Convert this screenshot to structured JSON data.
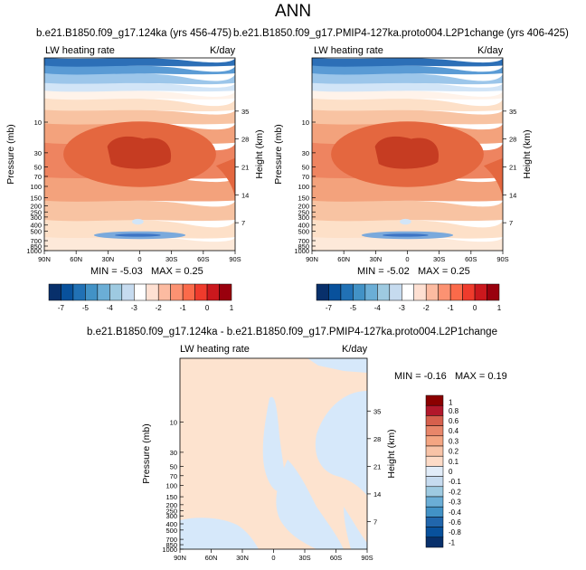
{
  "main_title": "ANN",
  "chart_data": [
    {
      "type": "heatmap",
      "title": "b.e21.B1850.f09_g17.124ka (yrs 456-475)",
      "left_label": "LW heating rate",
      "right_label": "K/day",
      "xlabel": "",
      "ylabel": "Pressure (mb)",
      "ylabel_right": "Height (km)",
      "x_ticks": [
        "90N",
        "60N",
        "30N",
        "0",
        "30S",
        "60S",
        "90S"
      ],
      "y_ticks": [
        "10",
        "30",
        "50",
        "70",
        "100",
        "150",
        "200",
        "250",
        "300",
        "400",
        "500",
        "700",
        "850",
        "1000"
      ],
      "y_ticks_right": [
        "35",
        "28",
        "21",
        "14",
        "7"
      ],
      "ylim": [
        1,
        1000
      ],
      "min_label": "MIN =",
      "min_value": "-5.03",
      "max_label": "MAX =",
      "max_value": "0.25",
      "colorbar_labels": [
        "-7",
        "-5",
        "-4",
        "-3",
        "-2",
        "-1",
        "0",
        "1"
      ]
    },
    {
      "type": "heatmap",
      "title": "b.e21.B1850.f09_g17.PMIP4-127ka.proto004.L2P1change (yrs 406-425)",
      "left_label": "LW heating rate",
      "right_label": "K/day",
      "xlabel": "",
      "ylabel": "Pressure (mb)",
      "ylabel_right": "Height (km)",
      "x_ticks": [
        "90N",
        "60N",
        "30N",
        "0",
        "30S",
        "60S",
        "90S"
      ],
      "y_ticks": [
        "10",
        "30",
        "50",
        "70",
        "100",
        "150",
        "200",
        "250",
        "300",
        "400",
        "500",
        "700",
        "850",
        "1000"
      ],
      "y_ticks_right": [
        "35",
        "28",
        "21",
        "14",
        "7"
      ],
      "ylim": [
        1,
        1000
      ],
      "min_label": "MIN =",
      "min_value": "-5.02",
      "max_label": "MAX =",
      "max_value": "0.25",
      "colorbar_labels": [
        "-7",
        "-5",
        "-4",
        "-3",
        "-2",
        "-1",
        "0",
        "1"
      ]
    },
    {
      "type": "heatmap",
      "title": "b.e21.B1850.f09_g17.124ka - b.e21.B1850.f09_g17.PMIP4-127ka.proto004.L2P1change",
      "left_label": "LW heating rate",
      "right_label": "K/day",
      "xlabel": "",
      "ylabel": "Pressure (mb)",
      "ylabel_right": "Height (km)",
      "x_ticks": [
        "90N",
        "60N",
        "30N",
        "0",
        "30S",
        "60S",
        "90S"
      ],
      "y_ticks": [
        "10",
        "30",
        "50",
        "70",
        "100",
        "150",
        "200",
        "250",
        "300",
        "400",
        "500",
        "700",
        "850",
        "1000"
      ],
      "y_ticks_right": [
        "35",
        "28",
        "21",
        "14",
        "7"
      ],
      "ylim": [
        1,
        1000
      ],
      "min_label": "MIN =",
      "min_value": "-0.16",
      "max_label": "MAX =",
      "max_value": "0.19",
      "colorbar_labels": [
        "1",
        "0.8",
        "0.6",
        "0.4",
        "0.3",
        "0.2",
        "0.1",
        "0",
        "-0.1",
        "-0.2",
        "-0.3",
        "-0.4",
        "-0.6",
        "-0.8",
        "-1"
      ]
    }
  ],
  "colors": {
    "scale_div": [
      "#08306b",
      "#08519c",
      "#2171b5",
      "#4292c6",
      "#6baed6",
      "#9ecae1",
      "#c6dbef",
      "#ffffff",
      "#fee0d2",
      "#fcbba1",
      "#fc9272",
      "#fb6a4a",
      "#ef3b2c",
      "#cb181d",
      "#99000d"
    ],
    "scale_diff": [
      "#8b0000",
      "#b2182b",
      "#d6604d",
      "#e8866a",
      "#f4a582",
      "#f8c3a7",
      "#fddbc7",
      "#e1ecf8",
      "#c6dbef",
      "#9ecae1",
      "#6baed6",
      "#4292c6",
      "#2166ac",
      "#08519c",
      "#08306b"
    ],
    "field_light_blue": "#d6e8fa",
    "field_cream": "#fde3cf",
    "field_dark": "#c63c22"
  }
}
